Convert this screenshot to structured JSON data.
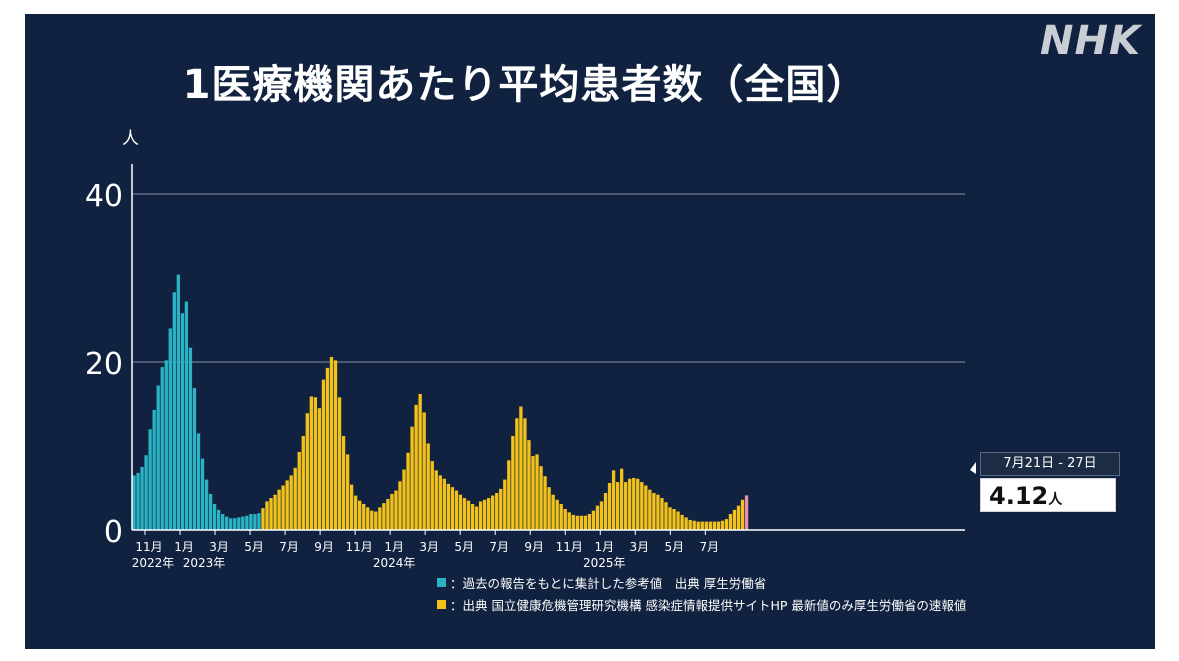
{
  "logo": "NHK",
  "title": "1医療機関あたり平均患者数（全国）",
  "legend": [
    {
      "color": "#29b3c4",
      "text": "：過去の報告をもとに集計した参考値　出典 厚生労働省"
    },
    {
      "color": "#f2c21a",
      "text": "：出典 国立健康危機管理研究機構 感染症情報提供サイトHP 最新値のみ厚生労働省の速報値"
    }
  ],
  "callout": {
    "date": "7月21日 - 27日",
    "value": "4.12",
    "unit": "人"
  },
  "chart_data": {
    "type": "bar",
    "ylabel": "人",
    "ylim": [
      0,
      40
    ],
    "yticks": [
      0,
      20,
      40
    ],
    "grid": true,
    "month_ticks": [
      "11月",
      "1月",
      "3月",
      "5月",
      "7月",
      "9月",
      "11月",
      "1月",
      "3月",
      "5月",
      "7月",
      "9月",
      "11月",
      "1月",
      "3月",
      "5月",
      "7月"
    ],
    "year_labels": [
      {
        "text": "2022年",
        "under_tick": 0
      },
      {
        "text": "2023年",
        "under_tick": 1
      },
      {
        "text": "2024年",
        "under_tick": 7
      },
      {
        "text": "2025年",
        "under_tick": 13
      }
    ],
    "colors": {
      "reference": "#29b3c4",
      "official": "#f2c21a",
      "latest": "#e58fae"
    },
    "series": [
      {
        "name": "reference",
        "values": [
          6.5,
          6.8,
          7.5,
          8.9,
          12,
          14.3,
          17.2,
          19.4,
          20.2,
          24,
          28.3,
          30.4,
          25.8,
          27.2,
          21.7,
          16.9,
          11.5,
          8.5,
          6,
          4.3,
          3.1,
          2.4,
          1.9,
          1.6,
          1.4,
          1.4,
          1.5,
          1.6,
          1.7,
          1.9,
          1.9,
          2.0
        ]
      },
      {
        "name": "official",
        "values": [
          2.6,
          3.4,
          3.8,
          4.2,
          4.8,
          5.3,
          5.9,
          6.5,
          7.4,
          9.3,
          11.2,
          13.9,
          15.9,
          15.8,
          14.5,
          17.9,
          19.3,
          20.6,
          20.2,
          15.8,
          11.2,
          9,
          5.4,
          4.1,
          3.5,
          3.1,
          2.7,
          2.3,
          2.2,
          2.7,
          3.2,
          3.7,
          4.3,
          4.7,
          5.8,
          7.2,
          9.2,
          12.3,
          14.9,
          16.2,
          14,
          10.3,
          8.2,
          7.1,
          6.5,
          6.1,
          5.5,
          5.1,
          4.7,
          4.2,
          3.8,
          3.5,
          3.1,
          2.8,
          3.4,
          3.6,
          3.8,
          4.1,
          4.4,
          4.9,
          6,
          8.3,
          11.2,
          13.3,
          14.7,
          13.3,
          10.7,
          8.8,
          9,
          7.6,
          6.4,
          5.1,
          4.2,
          3.6,
          3.1,
          2.5,
          2.1,
          1.8,
          1.7,
          1.7,
          1.7,
          1.9,
          2.3,
          2.9,
          3.4,
          4.4,
          5.6,
          7.1,
          5.7,
          7.3,
          5.7,
          6.1,
          6.2,
          6.1,
          5.7,
          5.3,
          4.8,
          4.4,
          4.2,
          3.8,
          3.3,
          2.7,
          2.5,
          2.2,
          1.8,
          1.5,
          1.2,
          1.1,
          1.0,
          1.0,
          1.0,
          1.0,
          1.0,
          1.0,
          1.1,
          1.3,
          1.9,
          2.4,
          2.9,
          3.6
        ]
      },
      {
        "name": "latest",
        "values": [
          4.12
        ]
      }
    ]
  }
}
